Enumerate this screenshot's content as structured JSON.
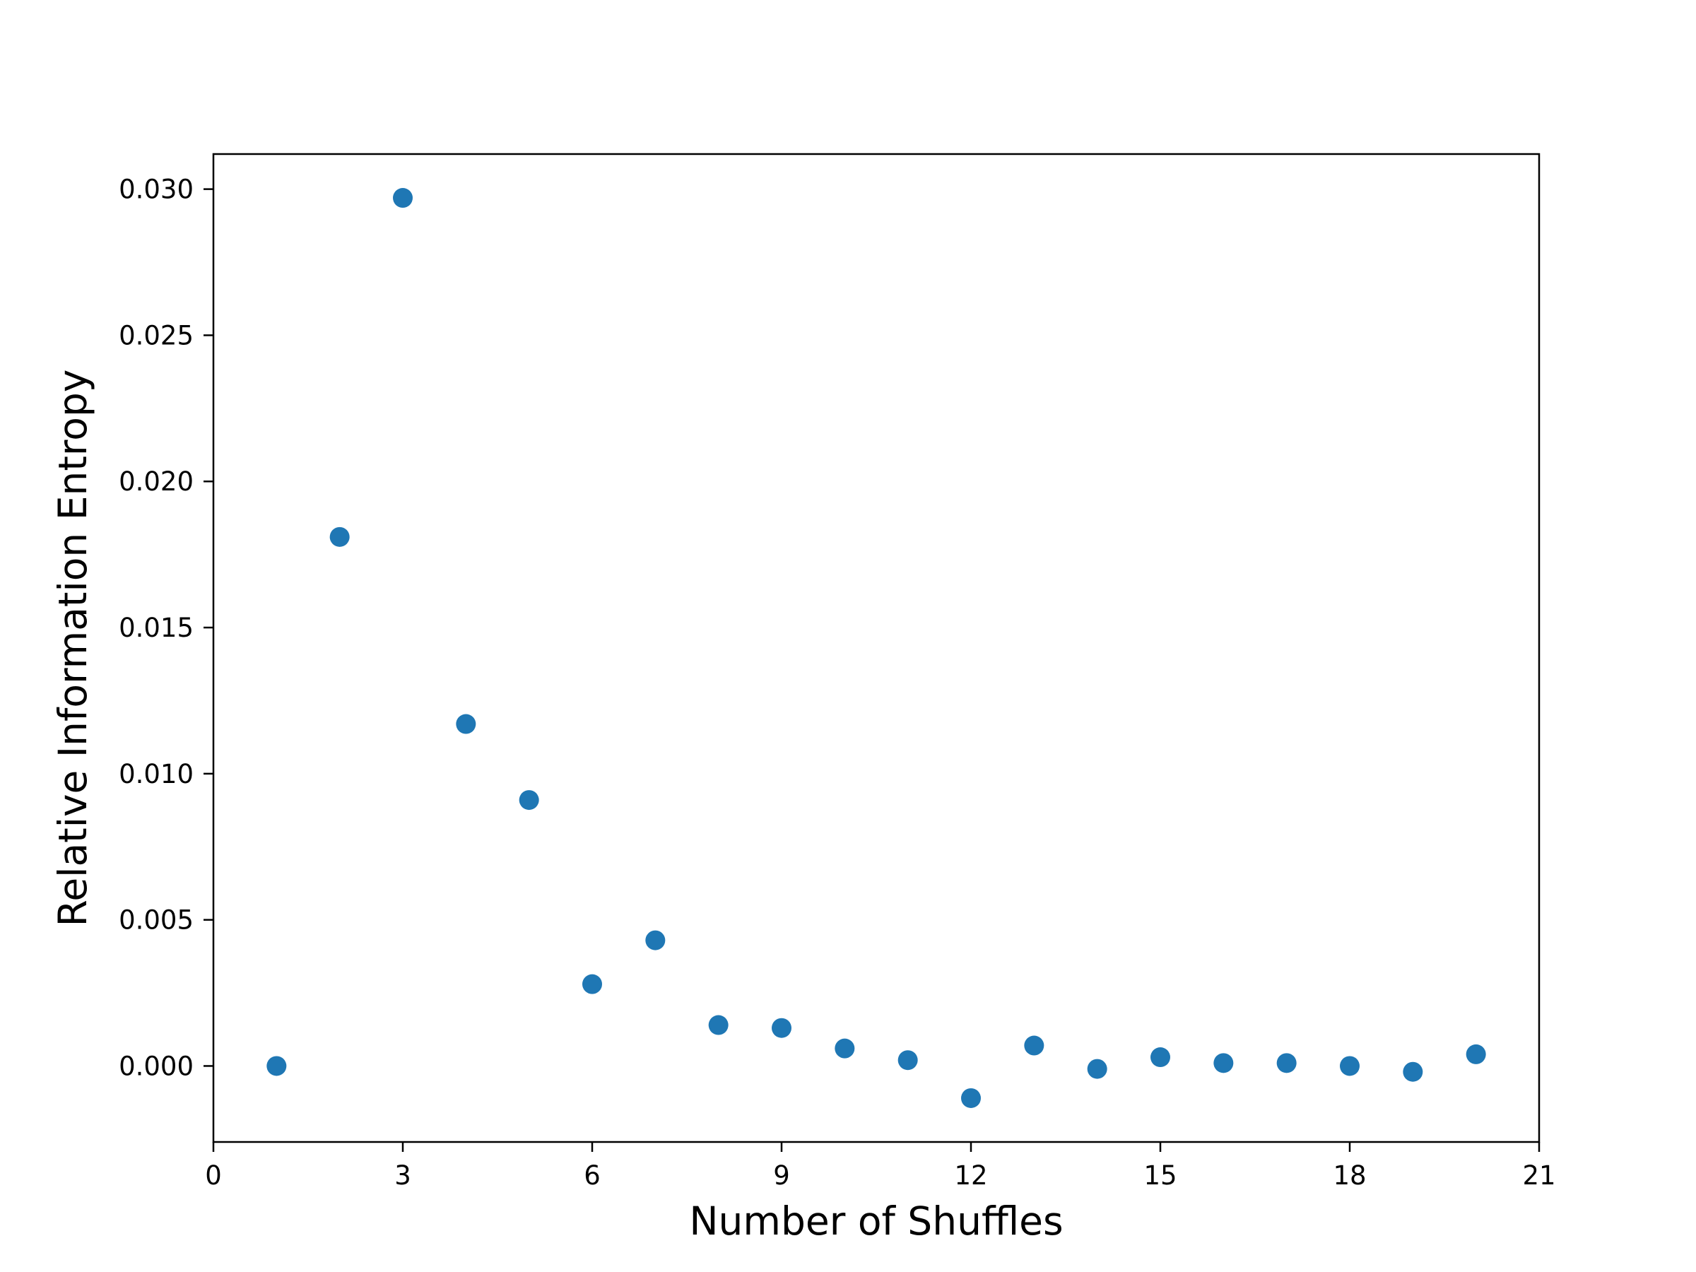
{
  "chart_data": {
    "type": "scatter",
    "title": "",
    "xlabel": "Number of Shuffles",
    "ylabel": "Relative Information Entropy",
    "xlim": [
      0,
      21
    ],
    "ylim": [
      -0.0026,
      0.0312
    ],
    "xticks": [
      "0",
      "3",
      "6",
      "9",
      "12",
      "15",
      "18",
      "21"
    ],
    "yticks": [
      "0.000",
      "0.005",
      "0.010",
      "0.015",
      "0.020",
      "0.025",
      "0.030"
    ],
    "grid": false,
    "legend": "none",
    "marker_color": "#1f77b4",
    "series": [
      {
        "x": [
          1,
          2,
          3,
          4,
          5,
          6,
          7,
          8,
          9,
          10,
          11,
          12,
          13,
          14,
          15,
          16,
          17,
          18,
          19,
          20
        ],
        "y": [
          0.0,
          0.0181,
          0.0297,
          0.0117,
          0.0091,
          0.0028,
          0.0043,
          0.0014,
          0.0013,
          0.0006,
          0.0002,
          -0.0011,
          0.0007,
          -0.0001,
          0.0003,
          0.0001,
          0.0001,
          0.0,
          -0.0002,
          0.0004
        ]
      }
    ]
  }
}
